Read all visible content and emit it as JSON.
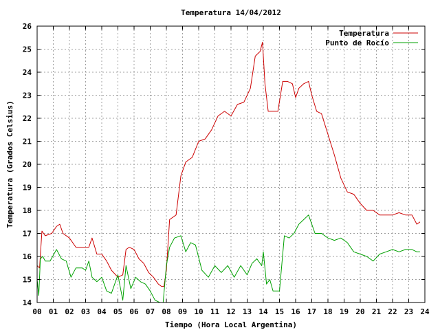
{
  "chart_data": {
    "type": "line",
    "title": "Temperatura 14/04/2012",
    "xlabel": "Tiempo (Hora Local Argentina)",
    "ylabel": "Temperatura (Grados Celsius)",
    "xlim": [
      0,
      24
    ],
    "ylim": [
      14,
      26
    ],
    "x_ticks": [
      "00",
      "01",
      "02",
      "03",
      "04",
      "05",
      "06",
      "07",
      "08",
      "09",
      "10",
      "11",
      "12",
      "13",
      "14",
      "15",
      "16",
      "17",
      "18",
      "19",
      "20",
      "21",
      "22",
      "23",
      "24"
    ],
    "y_ticks": [
      "14",
      "15",
      "16",
      "17",
      "18",
      "19",
      "20",
      "21",
      "22",
      "23",
      "24",
      "25",
      "26"
    ],
    "grid": true,
    "legend_position": "top-right",
    "series": [
      {
        "name": "Temperatura",
        "color": "#cc0000",
        "x": [
          0.0,
          0.15,
          0.3,
          0.5,
          0.9,
          1.2,
          1.4,
          1.6,
          2.0,
          2.4,
          2.9,
          3.2,
          3.4,
          3.7,
          4.0,
          4.3,
          4.6,
          5.0,
          5.3,
          5.5,
          5.7,
          6.0,
          6.3,
          6.6,
          6.9,
          7.2,
          7.5,
          7.7,
          7.85,
          8.0,
          8.2,
          8.6,
          8.9,
          9.2,
          9.6,
          10.0,
          10.4,
          10.8,
          11.2,
          11.6,
          12.0,
          12.4,
          12.8,
          13.2,
          13.5,
          13.8,
          13.95,
          14.1,
          14.3,
          14.6,
          14.9,
          15.2,
          15.5,
          15.8,
          16.0,
          16.2,
          16.5,
          16.8,
          17.0,
          17.3,
          17.6,
          18.0,
          18.4,
          18.8,
          19.2,
          19.6,
          20.0,
          20.4,
          20.8,
          21.2,
          21.6,
          22.0,
          22.4,
          22.8,
          23.2,
          23.5,
          23.7
        ],
        "y": [
          15.6,
          15.5,
          17.1,
          16.9,
          17.0,
          17.3,
          17.4,
          17.0,
          16.8,
          16.4,
          16.4,
          16.4,
          16.8,
          16.1,
          16.1,
          15.8,
          15.4,
          15.1,
          15.2,
          16.3,
          16.4,
          16.3,
          15.9,
          15.7,
          15.3,
          15.1,
          14.8,
          14.7,
          14.7,
          15.4,
          17.6,
          17.8,
          19.5,
          20.1,
          20.3,
          21.0,
          21.1,
          21.5,
          22.1,
          22.3,
          22.1,
          22.6,
          22.7,
          23.3,
          24.7,
          24.9,
          25.3,
          23.5,
          22.3,
          22.3,
          22.3,
          23.6,
          23.6,
          23.5,
          22.9,
          23.3,
          23.5,
          23.6,
          23.0,
          22.3,
          22.2,
          21.3,
          20.4,
          19.4,
          18.8,
          18.7,
          18.3,
          18.0,
          18.0,
          17.8,
          17.8,
          17.8,
          17.9,
          17.8,
          17.8,
          17.4,
          17.5
        ]
      },
      {
        "name": "Punto de Rocío",
        "color": "#00a000",
        "x": [
          0.0,
          0.1,
          0.2,
          0.35,
          0.5,
          0.8,
          1.2,
          1.5,
          1.8,
          2.1,
          2.4,
          2.8,
          3.0,
          3.2,
          3.4,
          3.7,
          4.0,
          4.3,
          4.6,
          5.0,
          5.3,
          5.5,
          5.8,
          6.1,
          6.4,
          6.7,
          7.0,
          7.3,
          7.6,
          7.8,
          8.0,
          8.2,
          8.5,
          8.9,
          9.2,
          9.5,
          9.8,
          10.2,
          10.6,
          11.0,
          11.4,
          11.8,
          12.2,
          12.6,
          13.0,
          13.3,
          13.6,
          13.9,
          14.0,
          14.2,
          14.4,
          14.6,
          14.8,
          15.0,
          15.3,
          15.6,
          15.9,
          16.2,
          16.5,
          16.8,
          17.2,
          17.6,
          18.0,
          18.4,
          18.8,
          19.2,
          19.6,
          20.0,
          20.4,
          20.8,
          21.2,
          21.6,
          22.0,
          22.4,
          22.8,
          23.2,
          23.5,
          23.7
        ],
        "y": [
          15.0,
          14.3,
          15.9,
          16.0,
          15.8,
          15.8,
          16.3,
          15.9,
          15.8,
          15.1,
          15.5,
          15.5,
          15.4,
          15.8,
          15.1,
          14.9,
          15.1,
          14.5,
          14.4,
          15.2,
          14.1,
          15.6,
          14.6,
          15.1,
          14.9,
          14.8,
          14.5,
          14.1,
          14.0,
          14.0,
          15.6,
          16.4,
          16.8,
          16.9,
          16.2,
          16.6,
          16.5,
          15.4,
          15.1,
          15.6,
          15.3,
          15.6,
          15.1,
          15.6,
          15.2,
          15.7,
          15.9,
          15.6,
          16.2,
          14.8,
          15.0,
          14.5,
          14.5,
          14.5,
          16.9,
          16.8,
          17.0,
          17.4,
          17.6,
          17.8,
          17.0,
          17.0,
          16.8,
          16.7,
          16.8,
          16.6,
          16.2,
          16.1,
          16.0,
          15.8,
          16.1,
          16.2,
          16.3,
          16.2,
          16.3,
          16.3,
          16.2,
          16.2
        ]
      }
    ]
  }
}
